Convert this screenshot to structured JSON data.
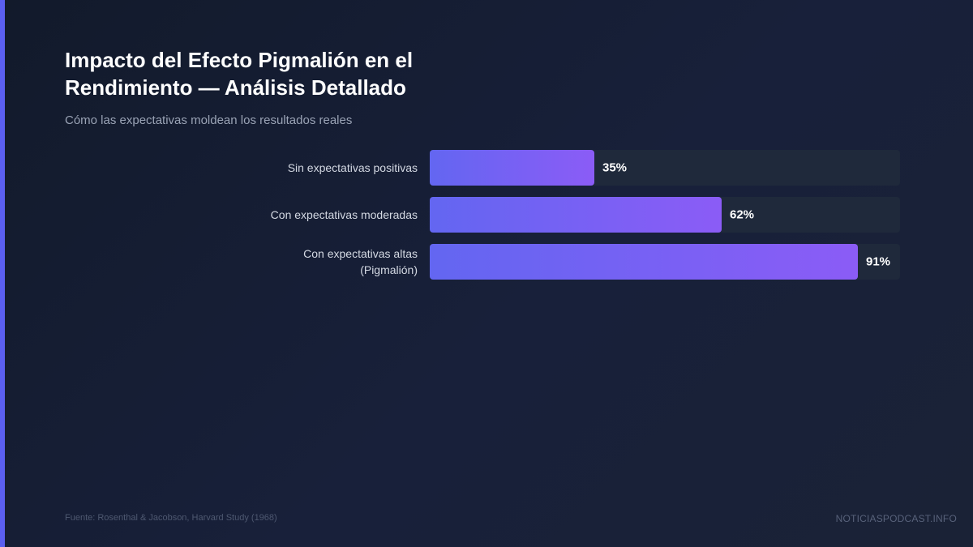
{
  "chart_data": {
    "type": "bar",
    "orientation": "horizontal",
    "title": "Impacto del Efecto Pigmalión en el Rendimiento — Análisis Detallado",
    "subtitle": "Cómo las expectativas moldean los resultados reales",
    "categories": [
      "Sin expectativas positivas",
      "Con expectativas moderadas",
      "Con expectativas altas (Pigmalión)"
    ],
    "values": [
      35,
      62,
      91
    ],
    "value_labels": [
      "35%",
      "62%",
      "91%"
    ],
    "unit": "%",
    "xlim": [
      0,
      100
    ],
    "grid": false,
    "legend": "none",
    "colors": {
      "bar_start": "#6366f1",
      "bar_end": "#8b5cf6",
      "track": "#1f293b",
      "accent": "#5b5ff0"
    }
  },
  "footer": {
    "source": "Fuente: Rosenthal & Jacobson, Harvard Study (1968)",
    "brand": "NOTICIASPODCAST.INFO"
  }
}
